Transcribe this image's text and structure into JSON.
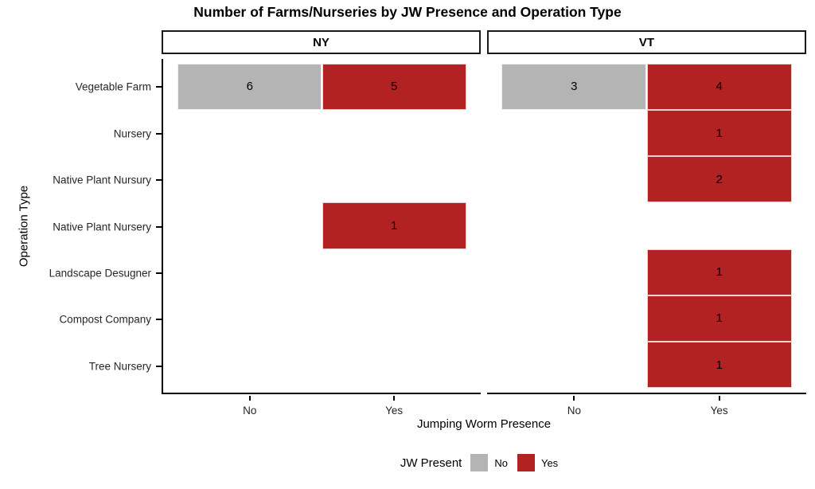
{
  "chart_data": {
    "type": "bar",
    "orientation": "horizontal",
    "grid": false,
    "title": "Number of Farms/Nurseries by JW Presence and Operation Type",
    "xlabel": "Jumping Worm Presence",
    "ylabel": "Operation Type",
    "facets": [
      "NY",
      "VT"
    ],
    "x_categories": [
      "No",
      "Yes"
    ],
    "y_categories": [
      "Vegetable Farm",
      "Nursery",
      "Native Plant Nursury",
      "Native Plant Nursery",
      "Landscape Desugner",
      "Compost Company",
      "Tree Nursery"
    ],
    "legend": {
      "title": "JW Present",
      "position": "bottom",
      "entries": [
        {
          "label": "No",
          "color": "#B4B4B4"
        },
        {
          "label": "Yes",
          "color": "#B22222"
        }
      ]
    },
    "cells": [
      {
        "facet": "NY",
        "y": "Vegetable Farm",
        "x": "No",
        "count": 6
      },
      {
        "facet": "NY",
        "y": "Vegetable Farm",
        "x": "Yes",
        "count": 5
      },
      {
        "facet": "NY",
        "y": "Native Plant Nursery",
        "x": "Yes",
        "count": 1
      },
      {
        "facet": "VT",
        "y": "Vegetable Farm",
        "x": "No",
        "count": 3
      },
      {
        "facet": "VT",
        "y": "Vegetable Farm",
        "x": "Yes",
        "count": 4
      },
      {
        "facet": "VT",
        "y": "Nursery",
        "x": "Yes",
        "count": 1
      },
      {
        "facet": "VT",
        "y": "Native Plant Nursury",
        "x": "Yes",
        "count": 2
      },
      {
        "facet": "VT",
        "y": "Landscape Desugner",
        "x": "Yes",
        "count": 1
      },
      {
        "facet": "VT",
        "y": "Compost Company",
        "x": "Yes",
        "count": 1
      },
      {
        "facet": "VT",
        "y": "Tree Nursery",
        "x": "Yes",
        "count": 1
      }
    ]
  }
}
